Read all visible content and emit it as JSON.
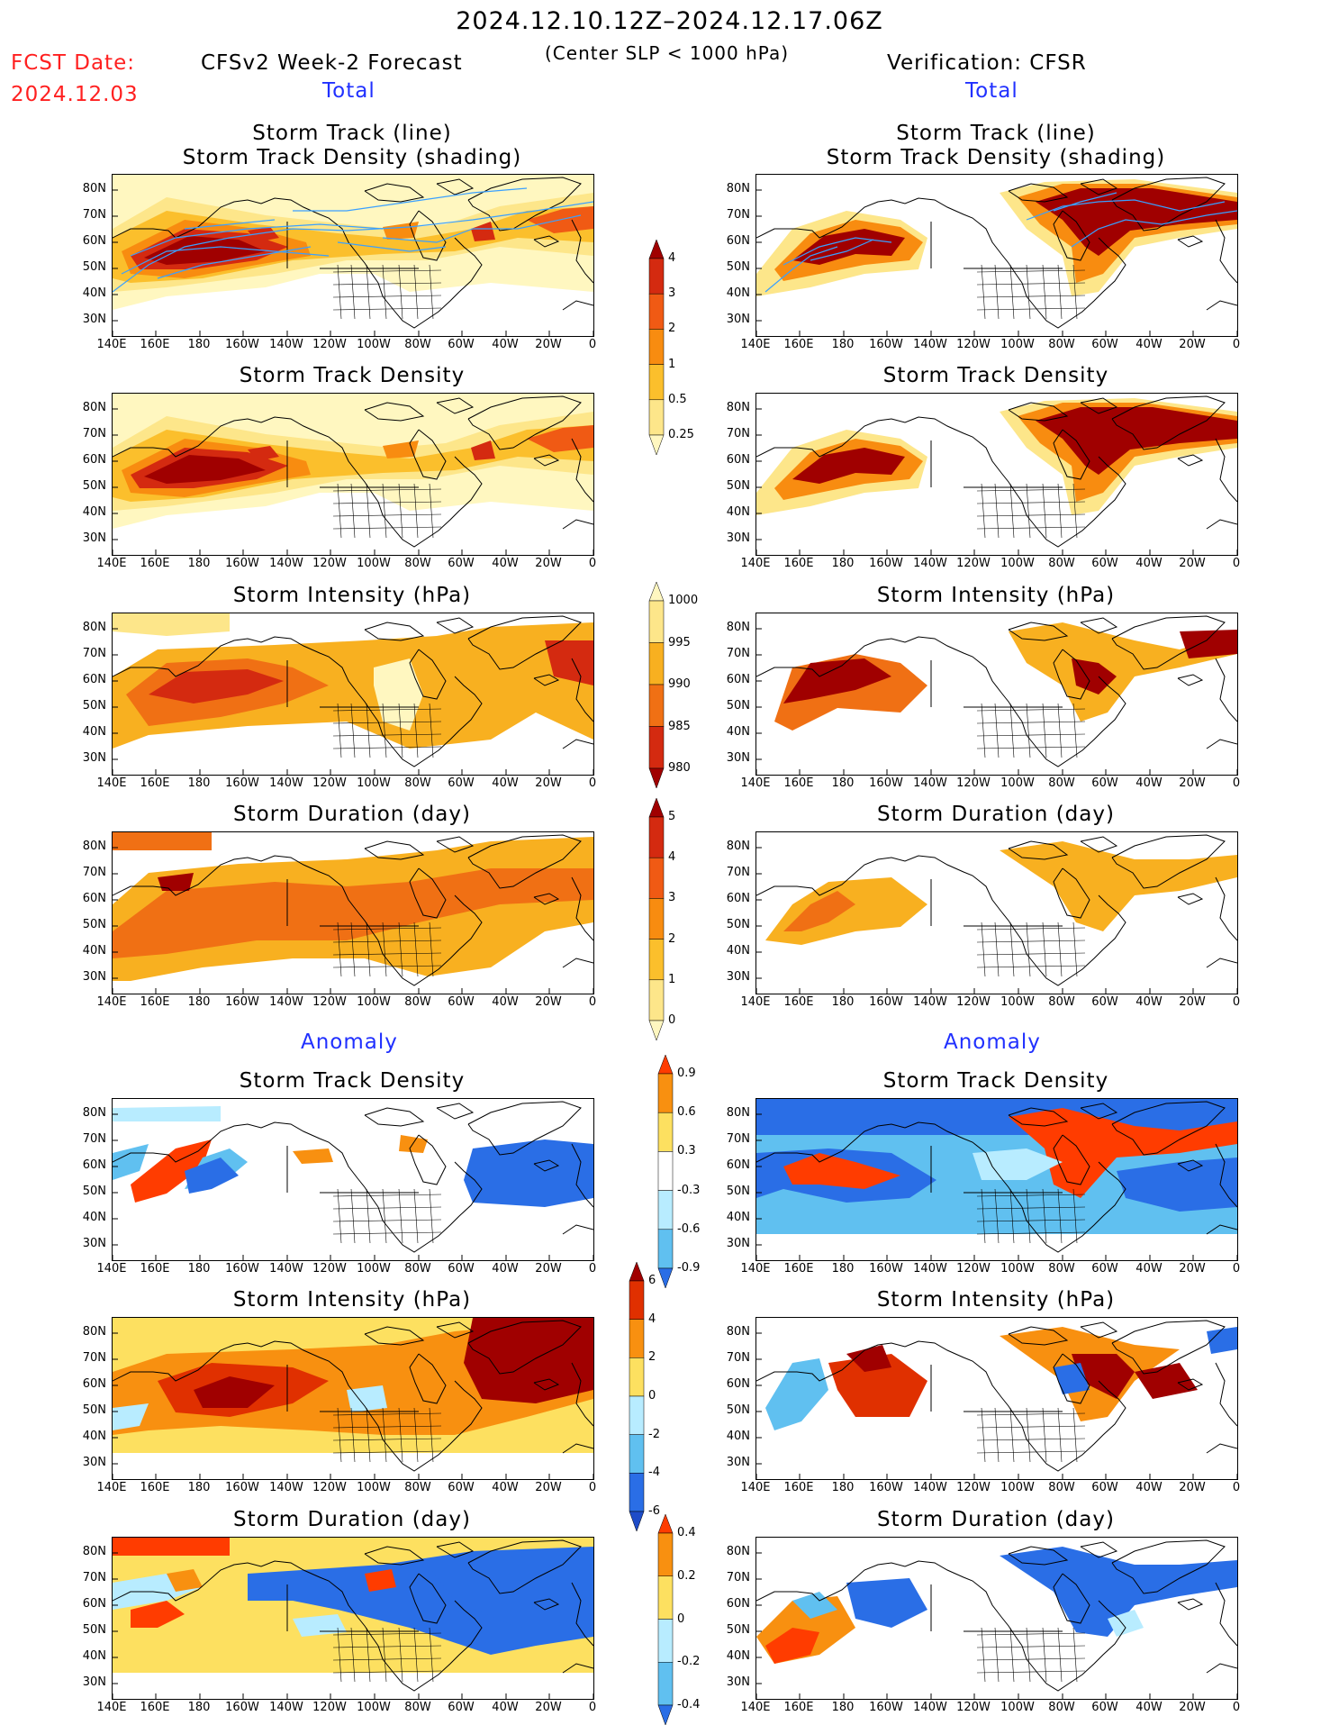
{
  "header": {
    "period": "2024.12.10.12Z–2024.12.17.06Z",
    "fcst_label": "FCST Date:",
    "fcst_date": "2024.12.03",
    "left_model": "CFSv2 Week-2 Forecast",
    "criterion": "(Center SLP < 1000 hPa)",
    "right_model": "Verification: CFSR",
    "section_total": "Total",
    "section_anomaly": "Anomaly"
  },
  "axes": {
    "lat_labels": [
      "80N",
      "70N",
      "60N",
      "50N",
      "40N",
      "30N"
    ],
    "lon_labels": [
      "140E",
      "160E",
      "180",
      "160W",
      "140W",
      "120W",
      "100W",
      "80W",
      "60W",
      "40W",
      "20W",
      "0"
    ]
  },
  "panel_titles": {
    "track_line": "Storm Track (line)",
    "track_shading": "Storm Track Density (shading)",
    "density": "Storm Track Density",
    "intensity": "Storm Intensity (hPa)",
    "duration": "Storm Duration (day)"
  },
  "colorbars": {
    "total_density": {
      "labels": [
        "4",
        "3",
        "2",
        "1",
        "0.5",
        "0.25"
      ],
      "colors": [
        "#a00000",
        "#d42a10",
        "#f05a14",
        "#f88c10",
        "#fbbf2c",
        "#fde68a",
        "#fff7c0"
      ]
    },
    "total_intensity": {
      "labels": [
        "1000",
        "995",
        "990",
        "985",
        "980"
      ],
      "colors": [
        "#fff7c0",
        "#fde68a",
        "#f8b020",
        "#f07014",
        "#d42a10",
        "#a00000"
      ]
    },
    "total_duration": {
      "labels": [
        "5",
        "4",
        "3",
        "2",
        "1",
        "0"
      ],
      "colors": [
        "#a00000",
        "#d42a10",
        "#f05a14",
        "#f88c10",
        "#fbbf2c",
        "#fde68a",
        "#fff7c0"
      ]
    },
    "anom_density": {
      "labels": [
        "0.9",
        "0.6",
        "0.3",
        "-0.3",
        "-0.6",
        "-0.9"
      ],
      "colors": [
        "#ff3c00",
        "#f89010",
        "#fde060",
        "#ffffff",
        "#b8ecff",
        "#60c0f0",
        "#2a6ee6"
      ]
    },
    "anom_intensity": {
      "labels": [
        "6",
        "4",
        "2",
        "0",
        "-2",
        "-4",
        "-6"
      ],
      "colors": [
        "#a00000",
        "#e03000",
        "#f89010",
        "#fde060",
        "#b8ecff",
        "#60c0f0",
        "#2a6ee6",
        "#1e4cc8"
      ]
    },
    "anom_duration": {
      "labels": [
        "0.4",
        "0.2",
        "0",
        "-0.2",
        "-0.4"
      ],
      "colors": [
        "#ff3c00",
        "#f89010",
        "#fde060",
        "#b8ecff",
        "#60c0f0",
        "#2a6ee6"
      ]
    }
  },
  "chart_data": [
    {
      "type": "heatmap",
      "panel": "forecast-total-track",
      "title": "Storm Track (line) Storm Track Density (shading)",
      "variable": "storm track density (cyclone tracks overlaid)",
      "lon_range": [
        "140E",
        "0"
      ],
      "lat_range": [
        "25N",
        "85N"
      ]
    },
    {
      "type": "heatmap",
      "panel": "forecast-total-density",
      "title": "Storm Track Density",
      "max_value_approx": 4
    },
    {
      "type": "heatmap",
      "panel": "forecast-total-intensity",
      "title": "Storm Intensity (hPa)",
      "value_range": [
        980,
        1000
      ]
    },
    {
      "type": "heatmap",
      "panel": "forecast-total-duration",
      "title": "Storm Duration (day)",
      "value_range": [
        0,
        5
      ]
    },
    {
      "type": "heatmap",
      "panel": "forecast-anom-density",
      "title": "Storm Track Density",
      "value_range": [
        -0.9,
        0.9
      ]
    },
    {
      "type": "heatmap",
      "panel": "forecast-anom-intensity",
      "title": "Storm Intensity (hPa)",
      "value_range": [
        -6,
        6
      ]
    },
    {
      "type": "heatmap",
      "panel": "forecast-anom-duration",
      "title": "Storm Duration (day)",
      "value_range": [
        -0.4,
        0.4
      ]
    },
    {
      "type": "heatmap",
      "panel": "verif-total-track",
      "title": "Storm Track (line) Storm Track Density (shading)"
    },
    {
      "type": "heatmap",
      "panel": "verif-total-density",
      "title": "Storm Track Density"
    },
    {
      "type": "heatmap",
      "panel": "verif-total-intensity",
      "title": "Storm Intensity (hPa)"
    },
    {
      "type": "heatmap",
      "panel": "verif-total-duration",
      "title": "Storm Duration (day)"
    },
    {
      "type": "heatmap",
      "panel": "verif-anom-density",
      "title": "Storm Track Density"
    },
    {
      "type": "heatmap",
      "panel": "verif-anom-intensity",
      "title": "Storm Intensity (hPa)"
    },
    {
      "type": "heatmap",
      "panel": "verif-anom-duration",
      "title": "Storm Duration (day)"
    }
  ]
}
